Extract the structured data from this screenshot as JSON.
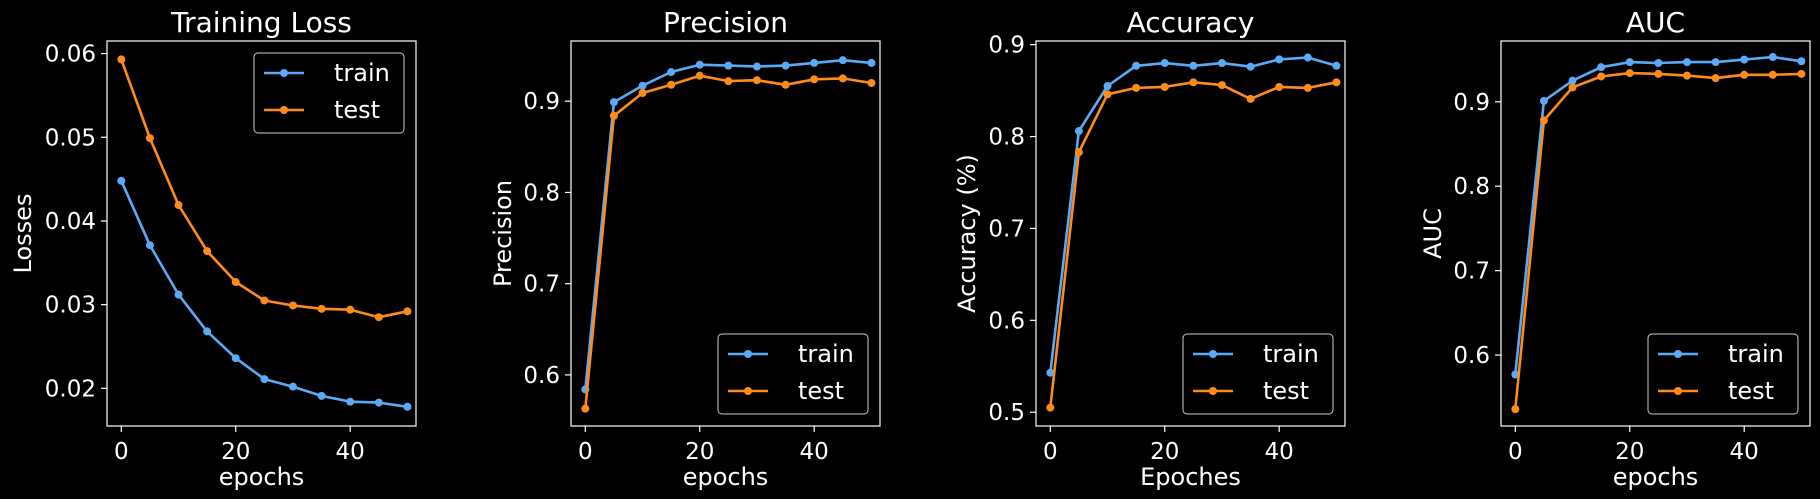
{
  "colors": {
    "background": "#000000",
    "train": "#5aaaf5",
    "test": "#ff8c1a",
    "axes": "#ffffff"
  },
  "chart_data": [
    {
      "type": "line",
      "title": "Training Loss",
      "xlabel": "epochs",
      "ylabel": "Losses",
      "xlim": [
        -2.5,
        51.5
      ],
      "ylim": [
        0.0155,
        0.0615
      ],
      "xticks": [
        0,
        20,
        40
      ],
      "yticks": [
        0.02,
        0.03,
        0.04,
        0.05,
        0.06
      ],
      "tick_decimals": 2,
      "legend": "top-right",
      "x": [
        0,
        5,
        10,
        15,
        20,
        25,
        30,
        35,
        40,
        45,
        50
      ],
      "series": [
        {
          "name": "train",
          "values": [
            0.0448,
            0.0371,
            0.0312,
            0.0268,
            0.0236,
            0.0211,
            0.0202,
            0.0191,
            0.0184,
            0.0183,
            0.0178
          ]
        },
        {
          "name": "test",
          "values": [
            0.0593,
            0.0499,
            0.0419,
            0.0364,
            0.0327,
            0.0305,
            0.0299,
            0.0295,
            0.0294,
            0.0285,
            0.0292
          ]
        }
      ]
    },
    {
      "type": "line",
      "title": "Precision",
      "xlabel": "epochs",
      "ylabel": "Precision",
      "xlim": [
        -2.5,
        51.5
      ],
      "ylim": [
        0.544,
        0.966
      ],
      "xticks": [
        0,
        20,
        40
      ],
      "yticks": [
        0.6,
        0.7,
        0.8,
        0.9
      ],
      "tick_decimals": 1,
      "legend": "bottom-right",
      "x": [
        0,
        5,
        10,
        15,
        20,
        25,
        30,
        35,
        40,
        45,
        50
      ],
      "series": [
        {
          "name": "train",
          "values": [
            0.584,
            0.899,
            0.917,
            0.932,
            0.94,
            0.939,
            0.938,
            0.939,
            0.942,
            0.945,
            0.942
          ]
        },
        {
          "name": "test",
          "values": [
            0.563,
            0.884,
            0.909,
            0.918,
            0.928,
            0.922,
            0.923,
            0.918,
            0.924,
            0.925,
            0.92
          ]
        }
      ]
    },
    {
      "type": "line",
      "title": "Accuracy",
      "xlabel": "Epoches",
      "ylabel": "Accuracy (%)",
      "xlim": [
        -2.5,
        51.5
      ],
      "ylim": [
        0.485,
        0.904
      ],
      "xticks": [
        0,
        20,
        40
      ],
      "yticks": [
        0.5,
        0.6,
        0.7,
        0.8,
        0.9
      ],
      "tick_decimals": 1,
      "legend": "bottom-right",
      "x": [
        0,
        5,
        10,
        15,
        20,
        25,
        30,
        35,
        40,
        45,
        50
      ],
      "series": [
        {
          "name": "train",
          "values": [
            0.543,
            0.806,
            0.855,
            0.877,
            0.88,
            0.877,
            0.88,
            0.876,
            0.884,
            0.886,
            0.877
          ]
        },
        {
          "name": "test",
          "values": [
            0.505,
            0.783,
            0.846,
            0.853,
            0.854,
            0.859,
            0.856,
            0.841,
            0.854,
            0.853,
            0.859
          ]
        }
      ]
    },
    {
      "type": "line",
      "title": "AUC",
      "xlabel": "epochs",
      "ylabel": "AUC",
      "xlim": [
        -2.5,
        51.5
      ],
      "ylim": [
        0.516,
        0.972
      ],
      "xticks": [
        0,
        20,
        40
      ],
      "yticks": [
        0.6,
        0.7,
        0.8,
        0.9
      ],
      "tick_decimals": 1,
      "legend": "bottom-right",
      "x": [
        0,
        5,
        10,
        15,
        20,
        25,
        30,
        35,
        40,
        45,
        50
      ],
      "series": [
        {
          "name": "train",
          "values": [
            0.577,
            0.901,
            0.925,
            0.941,
            0.947,
            0.946,
            0.947,
            0.947,
            0.95,
            0.953,
            0.948
          ]
        },
        {
          "name": "test",
          "values": [
            0.536,
            0.878,
            0.917,
            0.93,
            0.934,
            0.933,
            0.931,
            0.928,
            0.932,
            0.932,
            0.933
          ]
        }
      ]
    }
  ]
}
